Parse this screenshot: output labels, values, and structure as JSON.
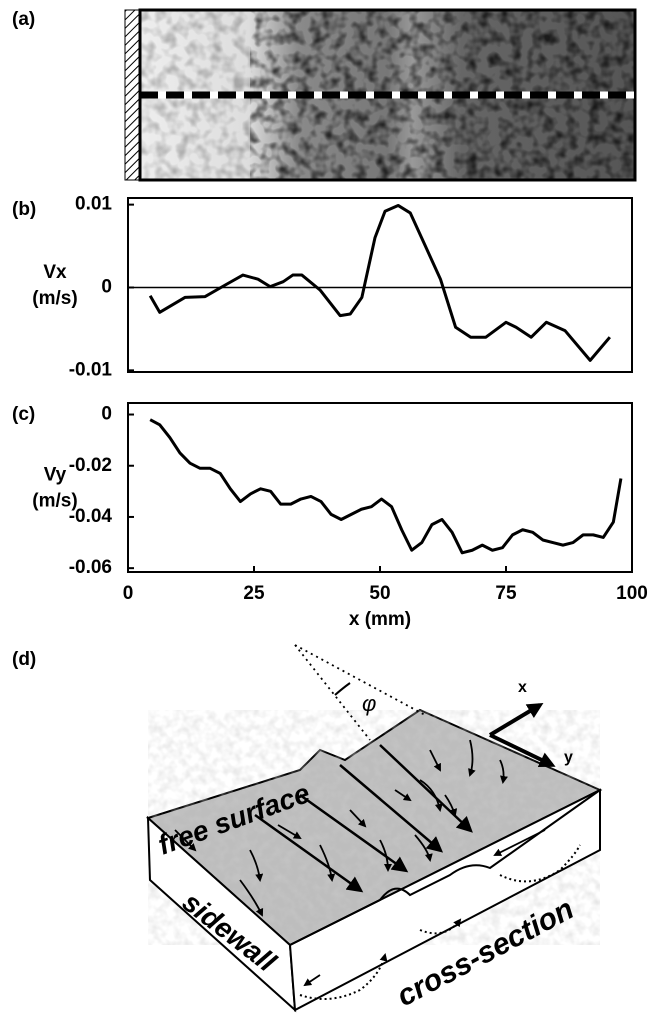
{
  "figure": {
    "panel_a": "(a)",
    "panel_d": "(d)"
  },
  "diagram": {
    "free_surface": "free surface",
    "sidewall": "sidewall",
    "cross_section": "cross-section",
    "x": "x",
    "y": "y",
    "angle": "φ"
  },
  "chart_data": [
    {
      "type": "line",
      "panel": "(b)",
      "ylabel": [
        "Vx",
        "(m/s)"
      ],
      "color": "#000000",
      "zero_line": true,
      "xlim": [
        0,
        100
      ],
      "ylim": [
        -0.0102,
        0.0108
      ],
      "yticks": [
        -0.01,
        0,
        0.01
      ],
      "x": [
        4.4,
        6.3,
        11.3,
        15.3,
        19.3,
        22.8,
        25.8,
        28.2,
        30.8,
        32.7,
        34.5,
        38.1,
        42.1,
        44.1,
        46.4,
        49,
        51,
        53.6,
        56,
        59,
        62,
        65,
        68,
        71,
        75,
        77,
        80,
        83,
        86.7,
        91.7,
        95.6
      ],
      "values": [
        -0.001,
        -0.003,
        -0.0012,
        -0.0011,
        0.0003,
        0.0015,
        0.001,
        0.0001,
        0.0007,
        0.0015,
        0.0015,
        -0.0003,
        -0.0034,
        -0.0032,
        -0.0012,
        0.006,
        0.0092,
        0.0099,
        0.009,
        0.005,
        0.001,
        -0.0048,
        -0.006,
        -0.006,
        -0.0042,
        -0.0048,
        -0.006,
        -0.0042,
        -0.0052,
        -0.0088,
        -0.006
      ]
    },
    {
      "type": "line",
      "panel": "(c)",
      "ylabel": [
        "Vy",
        "(m/s)"
      ],
      "xlabel": "x (mm)",
      "color": "#000000",
      "xlim": [
        0,
        100
      ],
      "xticks": [
        0,
        25,
        50,
        75,
        100
      ],
      "ylim": [
        -0.0615,
        0.0045
      ],
      "yticks": [
        -0.06,
        -0.04,
        -0.02,
        0
      ],
      "x": [
        4.4,
        6.3,
        8.3,
        10.3,
        12.3,
        14.3,
        16.3,
        18.3,
        20.3,
        22.3,
        24.3,
        26.3,
        28.3,
        30.3,
        32.3,
        34.3,
        36.3,
        38.3,
        40.3,
        42.3,
        44.3,
        46.3,
        48.3,
        50.3,
        52.3,
        54.3,
        56.3,
        58.3,
        60.3,
        62.3,
        64.3,
        66.3,
        68.3,
        70.3,
        72.3,
        74.3,
        76.3,
        78.3,
        80.3,
        82.3,
        84.3,
        86.3,
        88.3,
        90.3,
        92.3,
        94.3,
        96.3,
        97.8
      ],
      "values": [
        -0.002,
        -0.004,
        -0.009,
        -0.015,
        -0.019,
        -0.021,
        -0.021,
        -0.023,
        -0.029,
        -0.034,
        -0.031,
        -0.029,
        -0.03,
        -0.035,
        -0.035,
        -0.033,
        -0.032,
        -0.034,
        -0.039,
        -0.041,
        -0.039,
        -0.037,
        -0.036,
        -0.033,
        -0.036,
        -0.045,
        -0.053,
        -0.05,
        -0.043,
        -0.041,
        -0.046,
        -0.054,
        -0.053,
        -0.051,
        -0.053,
        -0.052,
        -0.047,
        -0.045,
        -0.046,
        -0.049,
        -0.05,
        -0.051,
        -0.05,
        -0.047,
        -0.047,
        -0.048,
        -0.042,
        -0.025
      ]
    }
  ]
}
